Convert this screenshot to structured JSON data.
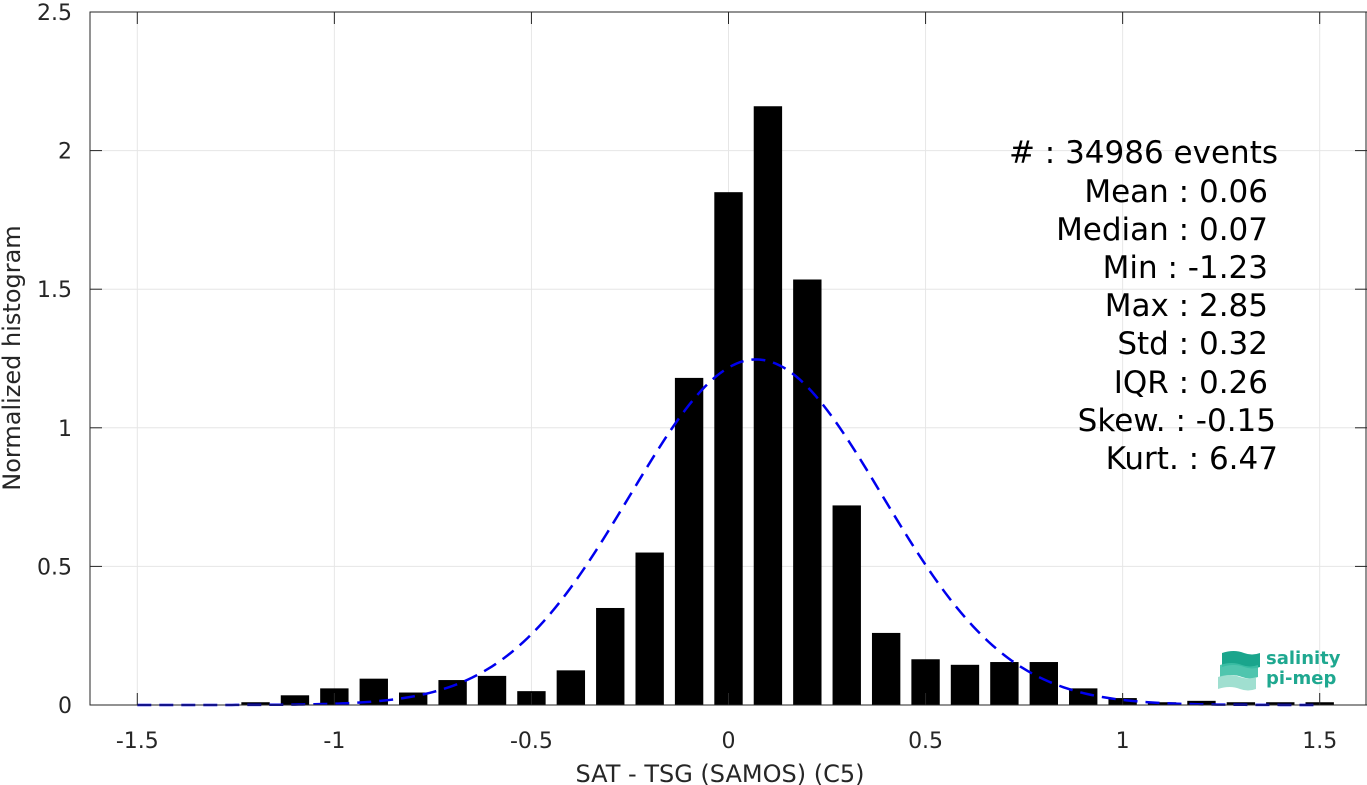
{
  "chart_data": {
    "type": "bar",
    "xlabel": "SAT - TSG (SAMOS) (C5)",
    "ylabel": "Normalized histogram",
    "xlim": [
      -1.62,
      1.62
    ],
    "ylim": [
      0,
      2.5
    ],
    "x_ticks": [
      "-1.5",
      "-1",
      "-0.5",
      "0",
      "0.5",
      "1",
      "1.5"
    ],
    "x_tick_values": [
      -1.5,
      -1,
      -0.5,
      0,
      0.5,
      1,
      1.5
    ],
    "y_ticks": [
      "0",
      "0.5",
      "1",
      "1.5",
      "2",
      "2.5"
    ],
    "y_tick_values": [
      0,
      0.5,
      1,
      1.5,
      2,
      2.5
    ],
    "grid": true,
    "bar_color": "#000000",
    "bin_centers": [
      -1.5,
      -1.4,
      -1.3,
      -1.2,
      -1.1,
      -1.0,
      -0.9,
      -0.8,
      -0.7,
      -0.6,
      -0.5,
      -0.4,
      -0.3,
      -0.2,
      -0.1,
      0.0,
      0.1,
      0.2,
      0.3,
      0.4,
      0.5,
      0.6,
      0.7,
      0.8,
      0.9,
      1.0,
      1.1,
      1.2,
      1.3,
      1.4,
      1.5
    ],
    "values": [
      0,
      0,
      0,
      0.01,
      0.035,
      0.06,
      0.095,
      0.045,
      0.09,
      0.105,
      0.05,
      0.125,
      0.35,
      0.55,
      1.18,
      1.85,
      2.16,
      1.535,
      0.72,
      0.26,
      0.165,
      0.145,
      0.155,
      0.155,
      0.06,
      0.025,
      0.01,
      0.015,
      0.01,
      0.01,
      0.01
    ],
    "fit": {
      "type": "gaussian",
      "mean": 0.07,
      "std": 0.32,
      "color": "#0000ee",
      "style": "dashed"
    }
  },
  "stats": [
    "#  : 34986 events",
    "Mean : 0.06",
    "Median : 0.07",
    "Min : -1.23",
    "Max : 2.85",
    "Std : 0.32",
    "IQR : 0.26",
    "Skew. : -0.15",
    "Kurt. : 6.47"
  ],
  "logo": {
    "line1": "salinity",
    "line2": "pi-mep",
    "color": "#1fa890"
  }
}
